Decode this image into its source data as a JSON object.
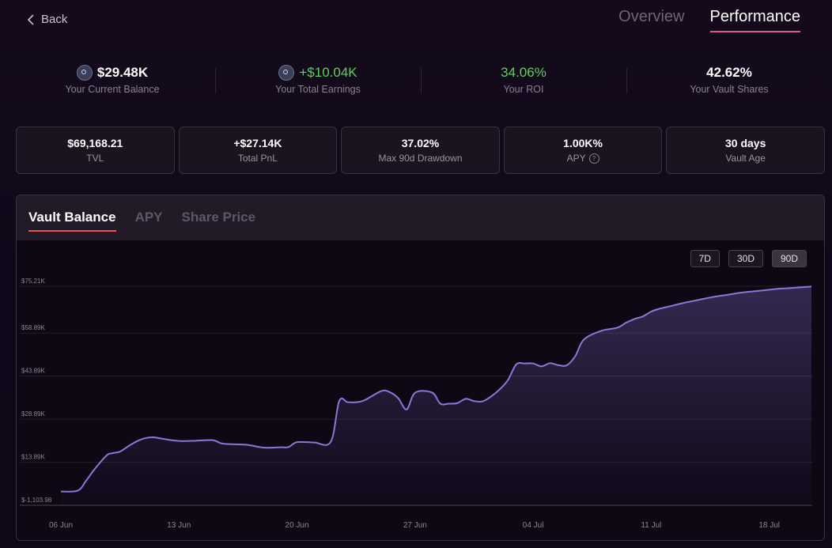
{
  "nav": {
    "back_label": "Back",
    "tabs": [
      "Overview",
      "Performance"
    ],
    "active_tab": "Performance"
  },
  "stats": [
    {
      "value": "$29.48K",
      "label": "Your Current Balance",
      "icon": "token-icon",
      "color": "#ffffff"
    },
    {
      "value": "+$10.04K",
      "label": "Your Total Earnings",
      "icon": "token-icon",
      "color": "#5cd25a"
    },
    {
      "value": "34.06%",
      "label": "Your ROI",
      "color": "#5cd25a"
    },
    {
      "value": "42.62%",
      "label": "Your Vault Shares",
      "color": "#ffffff"
    }
  ],
  "cards": [
    {
      "value": "$69,168.21",
      "label": "TVL"
    },
    {
      "value": "+$27.14K",
      "label": "Total PnL"
    },
    {
      "value": "37.02%",
      "label": "Max 90d Drawdown"
    },
    {
      "value": "1.00K%",
      "label": "APY",
      "help": "?"
    },
    {
      "value": "30 days",
      "label": "Vault Age"
    }
  ],
  "panel": {
    "tabs": [
      "Vault Balance",
      "APY",
      "Share Price"
    ],
    "active_tab": "Vault Balance",
    "ranges": [
      "7D",
      "30D",
      "90D"
    ],
    "active_range": "90D"
  },
  "chart_data": {
    "type": "area",
    "line_color": "#8a78d8",
    "y_ticks": [
      -1103.98,
      13890,
      28890,
      43890,
      58890,
      75210
    ],
    "y_tick_labels": [
      "$-1,103.98",
      "$13.89K",
      "$28.89K",
      "$43.89K",
      "$58.89K",
      "$75.21K"
    ],
    "ylim": [
      -1103.98,
      75210
    ],
    "x_tick_labels": [
      "06 Jun",
      "13 Jun",
      "20 Jun",
      "27 Jun",
      "04 Jul",
      "11 Jul",
      "18 Jul"
    ],
    "x_tick_days": [
      0,
      7,
      14,
      21,
      28,
      35,
      42
    ],
    "series": [
      {
        "x": [
          0,
          1,
          1.5,
          2,
          2.7,
          3,
          3.5,
          4,
          4.5,
          5,
          5.5,
          6,
          7,
          8,
          9,
          9.5,
          10,
          11,
          12,
          13,
          13.5,
          14,
          15,
          16,
          16.5,
          17,
          17.5,
          18,
          19,
          19.5,
          20,
          20.5,
          21,
          22,
          22.5,
          23,
          23.5,
          24,
          24.5,
          25,
          25.5,
          26,
          26.5,
          27,
          27.5,
          28,
          28.5,
          29,
          29.5,
          30,
          30.5,
          31,
          32,
          33,
          33.5,
          34,
          34.5,
          35,
          35.5,
          36,
          36.5,
          37,
          37.5,
          38,
          38.5,
          39,
          39.5,
          40,
          40.5,
          41,
          41.5,
          42,
          42.5,
          43,
          43.5,
          44,
          44.5
        ],
        "y": [
          3700,
          4000,
          7500,
          11500,
          16200,
          17000,
          17600,
          19500,
          21200,
          22300,
          22600,
          22100,
          21300,
          21400,
          21600,
          20500,
          20200,
          20000,
          19000,
          19100,
          19200,
          20900,
          20800,
          21000,
          35200,
          34800,
          34800,
          35500,
          38700,
          38300,
          36200,
          32300,
          38100,
          38200,
          34300,
          34300,
          34500,
          36000,
          35200,
          35100,
          36800,
          39200,
          42500,
          48000,
          48300,
          48300,
          47300,
          48400,
          47700,
          47700,
          50900,
          56600,
          59600,
          60800,
          62500,
          63800,
          64700,
          66400,
          67400,
          68100,
          68800,
          69500,
          70100,
          70700,
          71300,
          71800,
          72200,
          72700,
          73100,
          73400,
          73700,
          74000,
          74300,
          74500,
          74700,
          74900,
          75100
        ]
      }
    ]
  }
}
